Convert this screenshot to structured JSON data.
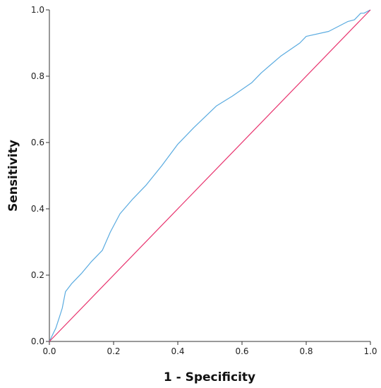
{
  "chart_data": {
    "type": "line",
    "xlabel": "1 - Specificity",
    "ylabel": "Sensitivity",
    "xlim": [
      0,
      1
    ],
    "ylim": [
      0,
      1
    ],
    "x_ticks": [
      "0.0",
      "0.2",
      "0.4",
      "0.6",
      "0.8",
      "1.0"
    ],
    "y_ticks": [
      "0.0",
      "0.2",
      "0.4",
      "0.6",
      "0.8",
      "1.0"
    ],
    "grid": false,
    "series": [
      {
        "color": "#5aabe0",
        "x": [
          0.0,
          0.01,
          0.02,
          0.03,
          0.04,
          0.05,
          0.07,
          0.1,
          0.13,
          0.165,
          0.19,
          0.22,
          0.26,
          0.3,
          0.35,
          0.4,
          0.45,
          0.52,
          0.57,
          0.63,
          0.66,
          0.72,
          0.78,
          0.8,
          0.87,
          0.93,
          0.95,
          0.97,
          0.98,
          1.0
        ],
        "y": [
          0.0,
          0.02,
          0.04,
          0.07,
          0.1,
          0.15,
          0.175,
          0.205,
          0.24,
          0.275,
          0.33,
          0.385,
          0.43,
          0.47,
          0.53,
          0.595,
          0.645,
          0.71,
          0.74,
          0.78,
          0.81,
          0.86,
          0.9,
          0.92,
          0.935,
          0.965,
          0.97,
          0.99,
          0.99,
          1.0
        ]
      },
      {
        "color": "#e8336e",
        "x": [
          0.0,
          1.0
        ],
        "y": [
          0.0,
          1.0
        ]
      }
    ]
  }
}
